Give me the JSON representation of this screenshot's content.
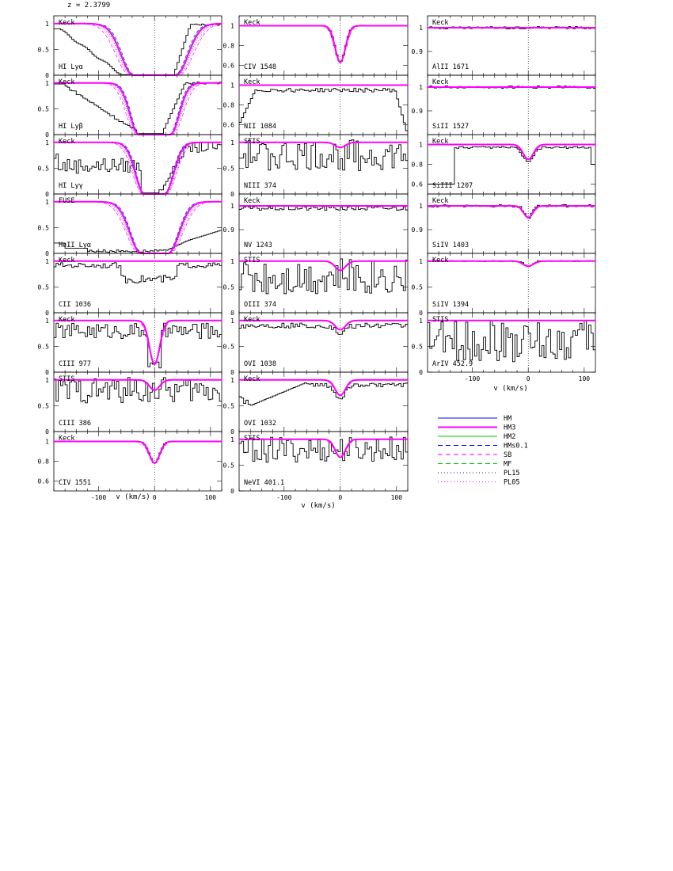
{
  "figure": {
    "redshift_label": "z = 2.3799",
    "xlabel": "v (km/s)"
  },
  "colors": {
    "data": "#000000",
    "HM": "#0000ff",
    "HM3": "#ff00ff",
    "HM2": "#00cc00",
    "HMs0.1": "#0000ff",
    "SB": "#ff00ff",
    "MF": "#00cc00",
    "PL15": "#0000ff",
    "PL05": "#ff00ff"
  },
  "legend": {
    "entries": [
      {
        "name": "HM",
        "color": "#0000ff",
        "style": "solid"
      },
      {
        "name": "HM3",
        "color": "#ff00ff",
        "style": "solid-thick"
      },
      {
        "name": "HM2",
        "color": "#00cc00",
        "style": "solid"
      },
      {
        "name": "HMs0.1",
        "color": "#0000ff",
        "style": "dashed"
      },
      {
        "name": "SB",
        "color": "#ff00ff",
        "style": "dashed"
      },
      {
        "name": "MF",
        "color": "#00cc00",
        "style": "dashed"
      },
      {
        "name": "PL15",
        "color": "#0000ff",
        "style": "dotted"
      },
      {
        "name": "PL05",
        "color": "#ff00ff",
        "style": "dotted"
      }
    ]
  },
  "chart_data": [
    {
      "type": "line",
      "panel": "HI Lyα",
      "instrument": "Keck",
      "label": "HI Lyα",
      "ylim": [
        0,
        1.15
      ],
      "yticks": [
        0,
        0.5,
        1
      ],
      "xlim": [
        -180,
        120
      ],
      "xticks": [
        -100,
        0,
        100
      ],
      "model": {
        "depth": 1.0,
        "sigma": 22,
        "plateau": 38
      },
      "spectrum": "lya"
    },
    {
      "type": "line",
      "panel": "HI Lyβ",
      "instrument": "Keck",
      "label": "HI Lyβ",
      "ylim": [
        0,
        1.15
      ],
      "yticks": [
        0,
        0.5,
        1
      ],
      "xlim": [
        -180,
        120
      ],
      "xticks": [
        -100,
        0,
        100
      ],
      "model": {
        "depth": 1.0,
        "sigma": 16,
        "plateau": 28
      },
      "spectrum": "lyb"
    },
    {
      "type": "line",
      "panel": "HI Lyγ",
      "instrument": "Keck",
      "label": "HI Lyγ",
      "ylim": [
        0,
        1.15
      ],
      "yticks": [
        0,
        0.5,
        1
      ],
      "xlim": [
        -180,
        120
      ],
      "xticks": [
        -100,
        0,
        100
      ],
      "model": {
        "depth": 1.0,
        "sigma": 16,
        "plateau": 18
      },
      "spectrum": "lyg"
    },
    {
      "type": "line",
      "panel": "HeII Lyα",
      "instrument": "FUSE",
      "label": "HeII Lyα",
      "ylim": [
        0,
        1.15
      ],
      "yticks": [
        0,
        0.5,
        1
      ],
      "xlim": [
        -180,
        120
      ],
      "xticks": [
        -100,
        0,
        100
      ],
      "model": {
        "depth": 1.0,
        "sigma": 20,
        "plateau": 24
      },
      "spectrum": "heii"
    },
    {
      "type": "line",
      "panel": "CII 1036",
      "instrument": "Keck",
      "label": "CII  1036",
      "ylim": [
        0,
        1.15
      ],
      "yticks": [
        0,
        0.5,
        1
      ],
      "xlim": [
        -180,
        120
      ],
      "xticks": [
        -100,
        0,
        100
      ],
      "model": {
        "depth": 0.0,
        "sigma": 8,
        "plateau": 0
      },
      "spectrum": "cii"
    },
    {
      "type": "line",
      "panel": "CIII 977",
      "instrument": "Keck",
      "label": "CIII  977",
      "ylim": [
        0,
        1.15
      ],
      "yticks": [
        0,
        0.5,
        1
      ],
      "xlim": [
        -180,
        120
      ],
      "xticks": [
        -100,
        0,
        100
      ],
      "model": {
        "depth": 0.85,
        "sigma": 9,
        "plateau": 0
      },
      "spectrum": "ciii977"
    },
    {
      "type": "line",
      "panel": "CIII 386",
      "instrument": "STIS",
      "label": "CIII  386",
      "ylim": [
        0,
        1.15
      ],
      "yticks": [
        0,
        0.5,
        1
      ],
      "xlim": [
        -180,
        120
      ],
      "xticks": [
        -100,
        0,
        100
      ],
      "model": {
        "depth": 0.2,
        "sigma": 9,
        "plateau": 0
      },
      "spectrum": "ciii386"
    },
    {
      "type": "line",
      "panel": "CIV 1551",
      "instrument": "Keck",
      "label": "CIV  1551",
      "ylim": [
        0.5,
        1.1
      ],
      "yticks": [
        0.6,
        0.8,
        1
      ],
      "xlim": [
        -180,
        120
      ],
      "xticks": [
        -100,
        0,
        100
      ],
      "model": {
        "depth": 0.22,
        "sigma": 9,
        "plateau": 0
      },
      "spectrum": "civ1551"
    },
    {
      "type": "line",
      "panel": "CIV 1548",
      "instrument": "Keck",
      "label": "CIV  1548",
      "ylim": [
        0.5,
        1.1
      ],
      "yticks": [
        0.6,
        0.8,
        1
      ],
      "xlim": [
        -180,
        120
      ],
      "xticks": [
        -100,
        0,
        100
      ],
      "model": {
        "depth": 0.37,
        "sigma": 9,
        "plateau": 0
      },
      "spectrum": "civ1548"
    },
    {
      "type": "line",
      "panel": "NII 1084",
      "instrument": "Keck",
      "label": "NII  1084",
      "ylim": [
        0.5,
        1.1
      ],
      "yticks": [
        0.6,
        0.8,
        1
      ],
      "xlim": [
        -180,
        120
      ],
      "xticks": [
        -100,
        0,
        100
      ],
      "model": {
        "depth": 0.0,
        "sigma": 8,
        "plateau": 0
      },
      "spectrum": "nii"
    },
    {
      "type": "line",
      "panel": "NIII 374",
      "instrument": "STIS",
      "label": "NIII  374",
      "ylim": [
        0,
        1.15
      ],
      "yticks": [
        0,
        0.5,
        1
      ],
      "xlim": [
        -180,
        120
      ],
      "xticks": [
        -100,
        0,
        100
      ],
      "model": {
        "depth": 0.1,
        "sigma": 9,
        "plateau": 0
      },
      "spectrum": "niii"
    },
    {
      "type": "line",
      "panel": "NV 1243",
      "instrument": "Keck",
      "label": "NV  1243",
      "ylim": [
        0.8,
        1.05
      ],
      "yticks": [
        0.9,
        1
      ],
      "xlim": [
        -180,
        120
      ],
      "xticks": [
        -100,
        0,
        100
      ],
      "model": {
        "depth": 0.0,
        "sigma": 8,
        "plateau": 0
      },
      "spectrum": "nv"
    },
    {
      "type": "line",
      "panel": "OIII 374",
      "instrument": "STIS",
      "label": "OIII  374",
      "ylim": [
        0,
        1.15
      ],
      "yticks": [
        0,
        0.5,
        1
      ],
      "xlim": [
        -180,
        120
      ],
      "xticks": [
        -100,
        0,
        100
      ],
      "model": {
        "depth": 0.18,
        "sigma": 9,
        "plateau": 0
      },
      "spectrum": "oiii"
    },
    {
      "type": "line",
      "panel": "OVI 1038",
      "instrument": "Keck",
      "label": "OVI  1038",
      "ylim": [
        0,
        1.15
      ],
      "yticks": [
        0,
        0.5,
        1
      ],
      "xlim": [
        -180,
        120
      ],
      "xticks": [
        -100,
        0,
        100
      ],
      "model": {
        "depth": 0.18,
        "sigma": 9,
        "plateau": 0
      },
      "spectrum": "ovi1038"
    },
    {
      "type": "line",
      "panel": "OVI 1032",
      "instrument": "Keck",
      "label": "OVI  1032",
      "ylim": [
        0,
        1.15
      ],
      "yticks": [
        0,
        0.5,
        1
      ],
      "xlim": [
        -180,
        120
      ],
      "xticks": [
        -100,
        0,
        100
      ],
      "model": {
        "depth": 0.3,
        "sigma": 9,
        "plateau": 0
      },
      "spectrum": "ovi1032"
    },
    {
      "type": "line",
      "panel": "NeVI 401.1",
      "instrument": "STIS",
      "label": "NeVI  401.1",
      "ylim": [
        0,
        1.15
      ],
      "yticks": [
        0,
        0.5,
        1
      ],
      "xlim": [
        -180,
        120
      ],
      "xticks": [
        -100,
        0,
        100
      ],
      "model": {
        "depth": 0.35,
        "sigma": 9,
        "plateau": 0
      },
      "spectrum": "nevi"
    },
    {
      "type": "line",
      "panel": "AlII 1671",
      "instrument": "Keck",
      "label": "AlII  1671",
      "ylim": [
        0.8,
        1.05
      ],
      "yticks": [
        0.9,
        1
      ],
      "xlim": [
        -180,
        120
      ],
      "xticks": [
        -100,
        0,
        100
      ],
      "model": {
        "depth": 0.0,
        "sigma": 8,
        "plateau": 0
      },
      "spectrum": "flat"
    },
    {
      "type": "line",
      "panel": "SiII 1527",
      "instrument": "Keck",
      "label": "SiII  1527",
      "ylim": [
        0.8,
        1.05
      ],
      "yticks": [
        0.9,
        1
      ],
      "xlim": [
        -180,
        120
      ],
      "xticks": [
        -100,
        0,
        100
      ],
      "model": {
        "depth": 0.0,
        "sigma": 8,
        "plateau": 0
      },
      "spectrum": "flat"
    },
    {
      "type": "line",
      "panel": "SiIII 1207",
      "instrument": "Keck",
      "label": "SiIII  1207",
      "ylim": [
        0.5,
        1.1
      ],
      "yticks": [
        0.6,
        0.8,
        1
      ],
      "xlim": [
        -180,
        120
      ],
      "xticks": [
        -100,
        0,
        100
      ],
      "model": {
        "depth": 0.15,
        "sigma": 9,
        "plateau": 0
      },
      "spectrum": "siiii"
    },
    {
      "type": "line",
      "panel": "SiIV 1403",
      "instrument": "Keck",
      "label": "SiIV  1403",
      "ylim": [
        0.8,
        1.05
      ],
      "yticks": [
        0.9,
        1
      ],
      "xlim": [
        -180,
        120
      ],
      "xticks": [
        -100,
        0,
        100
      ],
      "model": {
        "depth": 0.05,
        "sigma": 8,
        "plateau": 0
      },
      "spectrum": "siiv1403"
    },
    {
      "type": "line",
      "panel": "SiIV 1394",
      "instrument": "Keck",
      "label": "SiIV  1394",
      "ylim": [
        0,
        1.15
      ],
      "yticks": [
        0,
        0.5,
        1
      ],
      "xlim": [
        -180,
        120
      ],
      "xticks": [
        -100,
        0,
        100
      ],
      "model": {
        "depth": 0.1,
        "sigma": 9,
        "plateau": 0
      },
      "spectrum": "siiv1394"
    },
    {
      "type": "line",
      "panel": "ArIV 452.9",
      "instrument": "STIS",
      "label": "ArIV  452.9",
      "ylim": [
        0,
        1.15
      ],
      "yticks": [
        0,
        0.5,
        1
      ],
      "xlim": [
        -180,
        120
      ],
      "xticks": [
        -100,
        0,
        100
      ],
      "model": {
        "depth": 0.0,
        "sigma": 9,
        "plateau": 0
      },
      "spectrum": "ariv"
    }
  ]
}
